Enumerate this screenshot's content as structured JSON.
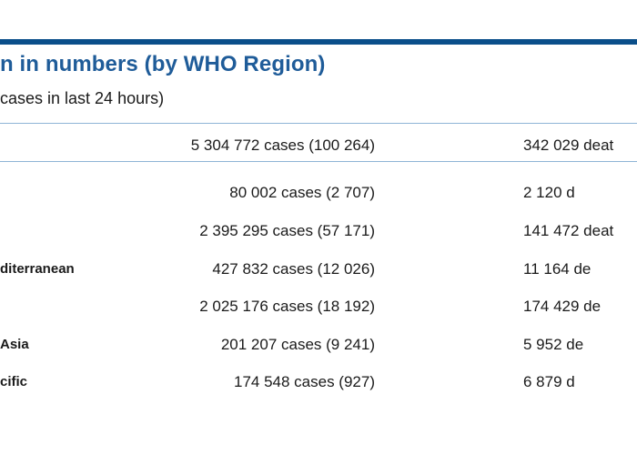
{
  "header": {
    "title": "n in numbers (by WHO Region)",
    "subtitle": "cases in last 24 hours)"
  },
  "table": {
    "rows": [
      {
        "region": "",
        "cases": "5 304 772 cases (100 264)",
        "deaths": "342 029 deat"
      },
      {
        "region": "",
        "cases": "80 002 cases (2 707)",
        "deaths": "2 120 d"
      },
      {
        "region": "",
        "cases": "2 395 295 cases (57 171)",
        "deaths": "141 472 deat"
      },
      {
        "region": "diterranean",
        "cases": "427 832 cases (12 026)",
        "deaths": "11 164 de"
      },
      {
        "region": "",
        "cases": "2 025 176 cases (18 192)",
        "deaths": "174 429 de"
      },
      {
        "region": "Asia",
        "cases": "201 207 cases (9 241)",
        "deaths": "5 952 de"
      },
      {
        "region": "cific",
        "cases": "174 548 cases (927)",
        "deaths": "6 879 d"
      }
    ]
  },
  "colors": {
    "accent": "#0b4f8a",
    "title": "#1f5c99",
    "rule": "#8fb4d6"
  }
}
